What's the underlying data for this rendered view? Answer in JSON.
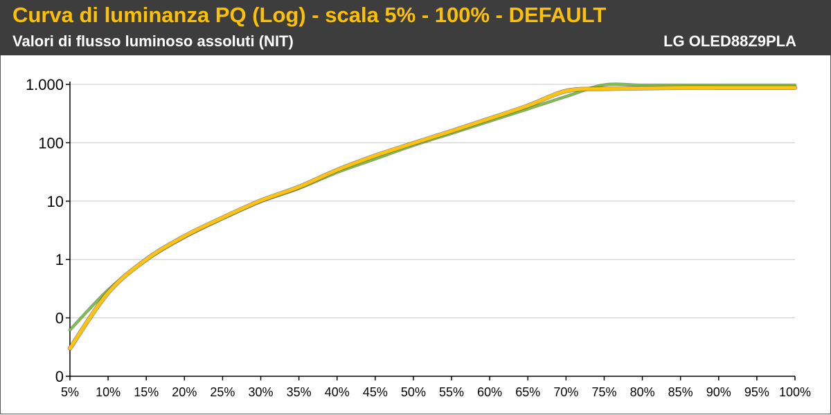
{
  "header": {
    "title": "Curva di luminanza PQ (Log) - scala 5% - 100% - DEFAULT",
    "subtitle": "Valori di flusso luminoso assoluti (NIT)",
    "model": "LG OLED88Z9PLA"
  },
  "chart_data": {
    "type": "line",
    "scale": "log",
    "grid": true,
    "x": [
      "5%",
      "10%",
      "15%",
      "20%",
      "25%",
      "30%",
      "35%",
      "40%",
      "45%",
      "50%",
      "55%",
      "60%",
      "65%",
      "70%",
      "75%",
      "80%",
      "85%",
      "90%",
      "95%",
      "100%"
    ],
    "y_ticks": [
      {
        "label": "0",
        "value": 0.01
      },
      {
        "label": "0",
        "value": 0.1
      },
      {
        "label": "1",
        "value": 1
      },
      {
        "label": "10",
        "value": 10
      },
      {
        "label": "100",
        "value": 100
      },
      {
        "label": "1.000",
        "value": 1000
      }
    ],
    "ylim": [
      0.01,
      1000
    ],
    "series": [
      {
        "color": "#7cc242",
        "values": [
          0.062,
          0.3,
          0.98,
          2.4,
          5.0,
          9.8,
          16.5,
          31,
          53,
          90,
          145,
          235,
          380,
          620,
          980,
          970,
          970,
          970,
          970,
          970
        ]
      },
      {
        "color": "#ffc20e",
        "values": [
          0.03,
          0.27,
          1.0,
          2.5,
          5.2,
          10.2,
          17.5,
          34,
          60,
          98,
          158,
          260,
          430,
          770,
          840,
          860,
          880,
          880,
          880,
          880
        ]
      }
    ]
  },
  "colors": {
    "header_bg": "#3d3d3d",
    "title": "#ffc000",
    "grid": "#c8c8c8"
  }
}
